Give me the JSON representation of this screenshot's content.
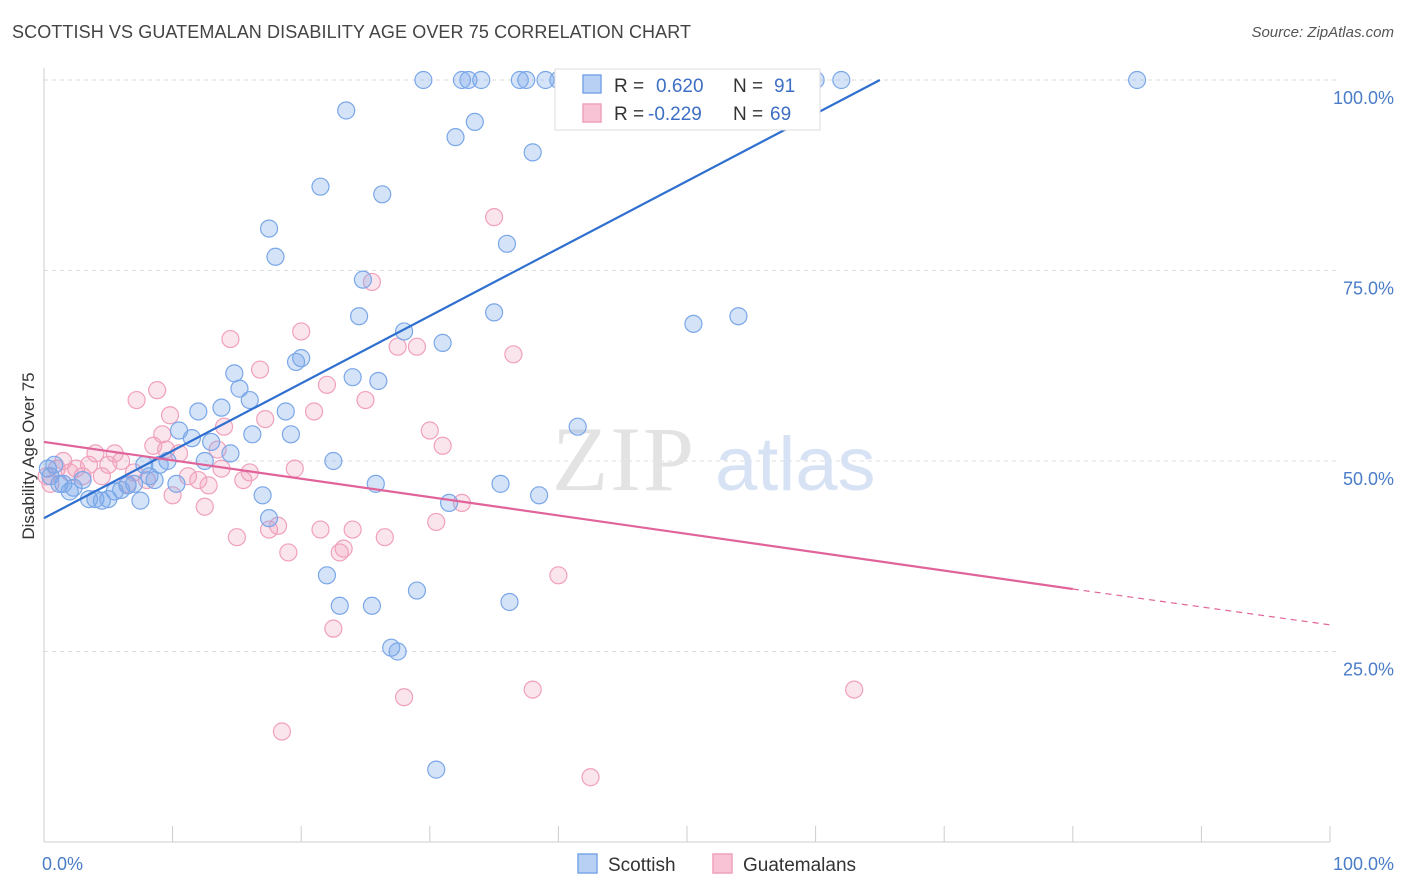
{
  "title": "SCOTTISH VS GUATEMALAN DISABILITY AGE OVER 75 CORRELATION CHART",
  "source": "Source: ZipAtlas.com",
  "watermark": {
    "zip": "ZIP",
    "atlas": "atlas"
  },
  "chart_data": {
    "type": "scatter",
    "xlabel": "",
    "ylabel": "Disability Age Over 75",
    "xlim": [
      0,
      100
    ],
    "ylim": [
      0,
      100
    ],
    "x_tick_labels": [
      "0.0%",
      "100.0%"
    ],
    "y_ticks": [
      25,
      50,
      75,
      100
    ],
    "y_tick_labels": [
      "25.0%",
      "50.0%",
      "75.0%",
      "100.0%"
    ],
    "grid": true,
    "legend_placement": "top-center",
    "colors": {
      "scottish": "#7aa7e8",
      "scottish_line": "#2f6fd0",
      "guatemalan": "#f0a0bc",
      "guatemalan_line": "#e0649a"
    },
    "stats": [
      {
        "r_label": "R =",
        "r_value": "0.620",
        "n_label": "N =",
        "n_value": "91"
      },
      {
        "r_label": "R =",
        "r_value": "-0.229",
        "n_label": "N =",
        "n_value": "69"
      }
    ],
    "series": [
      {
        "name": "Scottish",
        "trend": {
          "x1": 0,
          "y1": 42.5,
          "x2": 65,
          "y2": 100
        },
        "points": [
          [
            0.3,
            49
          ],
          [
            0.5,
            48
          ],
          [
            0.8,
            49.5
          ],
          [
            1.2,
            47
          ],
          [
            1.5,
            47
          ],
          [
            2,
            46
          ],
          [
            2.3,
            46.5
          ],
          [
            3,
            47.5
          ],
          [
            3.5,
            45
          ],
          [
            4,
            45
          ],
          [
            4.5,
            44.8
          ],
          [
            5,
            45
          ],
          [
            5.5,
            46
          ],
          [
            6,
            46.2
          ],
          [
            6.5,
            46.8
          ],
          [
            7,
            47
          ],
          [
            7.5,
            44.8
          ],
          [
            7.8,
            49.5
          ],
          [
            8.2,
            48
          ],
          [
            8.6,
            47.5
          ],
          [
            9,
            49.5
          ],
          [
            9.6,
            50
          ],
          [
            10.3,
            47
          ],
          [
            10.5,
            54
          ],
          [
            11.5,
            53
          ],
          [
            12,
            56.5
          ],
          [
            12.5,
            50
          ],
          [
            13,
            52.5
          ],
          [
            13.8,
            57
          ],
          [
            14.5,
            51
          ],
          [
            14.8,
            61.5
          ],
          [
            15.2,
            59.5
          ],
          [
            16,
            58
          ],
          [
            16.2,
            53.5
          ],
          [
            17,
            45.5
          ],
          [
            17.5,
            42.5
          ],
          [
            17.5,
            80.5
          ],
          [
            18,
            76.8
          ],
          [
            18.8,
            56.5
          ],
          [
            19.2,
            53.5
          ],
          [
            19.6,
            63
          ],
          [
            20,
            63.5
          ],
          [
            21.5,
            86
          ],
          [
            22,
            35
          ],
          [
            22.5,
            50
          ],
          [
            23,
            31
          ],
          [
            23.5,
            96
          ],
          [
            24,
            61
          ],
          [
            24.5,
            69
          ],
          [
            24.8,
            73.8
          ],
          [
            25.5,
            31
          ],
          [
            25.8,
            47
          ],
          [
            26,
            60.5
          ],
          [
            26.3,
            85
          ],
          [
            27,
            25.5
          ],
          [
            27.5,
            25
          ],
          [
            28,
            67
          ],
          [
            29,
            33
          ],
          [
            29.5,
            100
          ],
          [
            30.5,
            9.5
          ],
          [
            31,
            65.5
          ],
          [
            31.5,
            44.5
          ],
          [
            32,
            92.5
          ],
          [
            32.5,
            100
          ],
          [
            33,
            100
          ],
          [
            33.5,
            94.5
          ],
          [
            34,
            100
          ],
          [
            35,
            69.5
          ],
          [
            35.5,
            47
          ],
          [
            36,
            78.5
          ],
          [
            36.2,
            31.5
          ],
          [
            37,
            100
          ],
          [
            37.5,
            100
          ],
          [
            38,
            90.5
          ],
          [
            38.5,
            45.5
          ],
          [
            39,
            100
          ],
          [
            40,
            100
          ],
          [
            41,
            100
          ],
          [
            41.5,
            54.5
          ],
          [
            42,
            100
          ],
          [
            43,
            100
          ],
          [
            44,
            100
          ],
          [
            50.5,
            68
          ],
          [
            52,
            100
          ],
          [
            54,
            69
          ],
          [
            56,
            100
          ],
          [
            58,
            100
          ],
          [
            60,
            100
          ],
          [
            62,
            100
          ],
          [
            85,
            100
          ]
        ]
      },
      {
        "name": "Guatemalans",
        "trend": {
          "x1": 0,
          "y1": 52.5,
          "x2": 80,
          "y2": 33.2
        },
        "trend_dashed": {
          "x1": 80,
          "y1": 33.2,
          "x2": 100,
          "y2": 28.5
        },
        "points": [
          [
            0.2,
            48
          ],
          [
            0.5,
            47
          ],
          [
            1,
            49
          ],
          [
            1.5,
            50
          ],
          [
            2,
            48.5
          ],
          [
            2.5,
            49
          ],
          [
            3,
            48
          ],
          [
            3.5,
            49.5
          ],
          [
            4,
            51
          ],
          [
            4.5,
            48
          ],
          [
            5,
            49.5
          ],
          [
            5.5,
            51
          ],
          [
            6,
            50
          ],
          [
            6.5,
            47
          ],
          [
            7,
            48.5
          ],
          [
            7.2,
            58
          ],
          [
            8,
            47.5
          ],
          [
            8.5,
            52
          ],
          [
            8.8,
            59.3
          ],
          [
            9.2,
            53.5
          ],
          [
            9.5,
            51.5
          ],
          [
            9.8,
            56
          ],
          [
            10,
            45.5
          ],
          [
            10.5,
            51
          ],
          [
            11.2,
            48
          ],
          [
            12,
            47.5
          ],
          [
            12.5,
            44
          ],
          [
            12.8,
            46.8
          ],
          [
            13.5,
            51.5
          ],
          [
            13.8,
            49
          ],
          [
            14,
            54.5
          ],
          [
            14.5,
            66
          ],
          [
            15,
            40
          ],
          [
            15.5,
            47.5
          ],
          [
            16,
            48.5
          ],
          [
            16.8,
            62
          ],
          [
            17.2,
            55.5
          ],
          [
            17.5,
            41
          ],
          [
            18.2,
            41.5
          ],
          [
            18.5,
            14.5
          ],
          [
            19,
            38
          ],
          [
            19.5,
            49
          ],
          [
            20,
            67
          ],
          [
            21,
            56.5
          ],
          [
            21.5,
            41
          ],
          [
            22,
            60
          ],
          [
            22.5,
            28
          ],
          [
            23,
            38
          ],
          [
            23.3,
            38.5
          ],
          [
            24,
            41
          ],
          [
            25,
            58
          ],
          [
            25.5,
            73.5
          ],
          [
            26.5,
            40
          ],
          [
            27.5,
            65
          ],
          [
            28,
            19
          ],
          [
            29,
            65
          ],
          [
            30,
            54
          ],
          [
            30.5,
            42
          ],
          [
            31,
            52
          ],
          [
            32.5,
            44.5
          ],
          [
            35,
            82
          ],
          [
            36.5,
            64
          ],
          [
            38,
            20
          ],
          [
            40,
            35
          ],
          [
            42.5,
            8.5
          ],
          [
            63,
            20
          ]
        ]
      }
    ]
  },
  "bottom_legend": [
    {
      "label": "Scottish"
    },
    {
      "label": "Guatemalans"
    }
  ]
}
